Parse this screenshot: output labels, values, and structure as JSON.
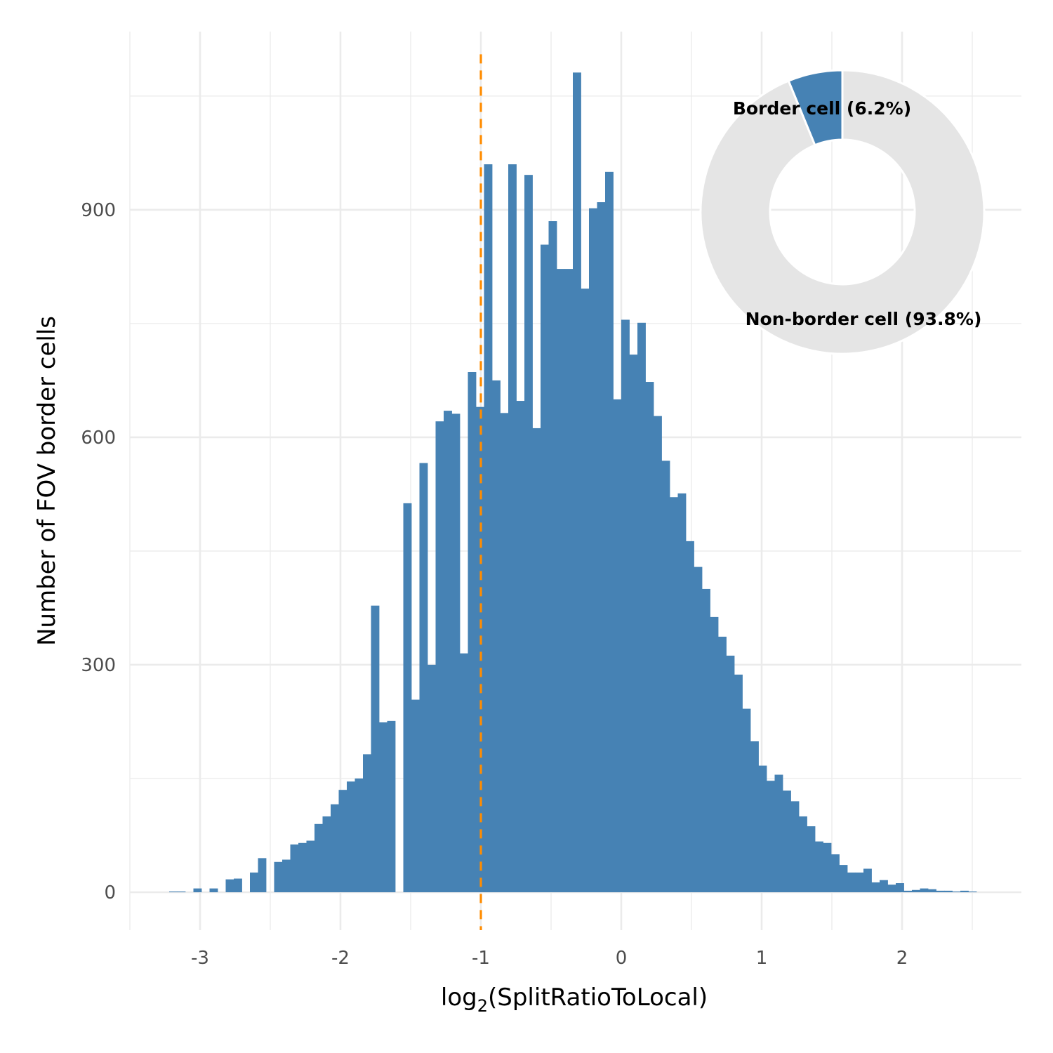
{
  "chart_data": [
    {
      "type": "bar",
      "subtype": "histogram",
      "xlabel_main": "log",
      "xlabel_sub": "2",
      "xlabel_rest": "(SplitRatioToLocal)",
      "ylabel": "Number of FOV border cells",
      "xlim": [
        -3.5,
        2.85
      ],
      "ylim": [
        -50,
        1135
      ],
      "xticks": [
        -3,
        -2,
        -1,
        0,
        1,
        2
      ],
      "xtick_labels": [
        "-3",
        "-2",
        "-1",
        "0",
        "1",
        "2"
      ],
      "yticks": [
        0,
        300,
        600,
        900
      ],
      "ytick_labels": [
        "0",
        "300",
        "600",
        "900"
      ],
      "grid": true,
      "bin_width": 0.0575,
      "bin_start": -3.22,
      "values": [
        1,
        1,
        0,
        5,
        0,
        5,
        0,
        17,
        18,
        0,
        26,
        45,
        0,
        40,
        43,
        63,
        65,
        68,
        90,
        100,
        116,
        135,
        146,
        150,
        182,
        378,
        224,
        226,
        0,
        513,
        254,
        566,
        300,
        621,
        635,
        631,
        315,
        686,
        640,
        960,
        675,
        632,
        960,
        648,
        946,
        612,
        854,
        885,
        822,
        822,
        1081,
        796,
        902,
        910,
        950,
        650,
        755,
        709,
        751,
        673,
        628,
        569,
        521,
        526,
        463,
        429,
        400,
        363,
        337,
        312,
        287,
        242,
        199,
        167,
        147,
        155,
        134,
        120,
        100,
        87,
        67,
        65,
        50,
        36,
        26,
        26,
        31,
        13,
        16,
        10,
        12,
        2,
        3,
        5,
        4,
        2,
        2,
        1,
        2,
        1
      ],
      "bar_color": "#4682b4",
      "vline": {
        "x": -1,
        "color": "#ff8c00",
        "style": "dashed"
      }
    },
    {
      "type": "pie",
      "subtype": "donut",
      "slices": [
        {
          "label": "Border cell (6.2%)",
          "value": 6.2,
          "color": "#4682b4"
        },
        {
          "label": "Non-border cell (93.8%)",
          "value": 93.8,
          "color": "#e5e5e5"
        }
      ]
    }
  ]
}
